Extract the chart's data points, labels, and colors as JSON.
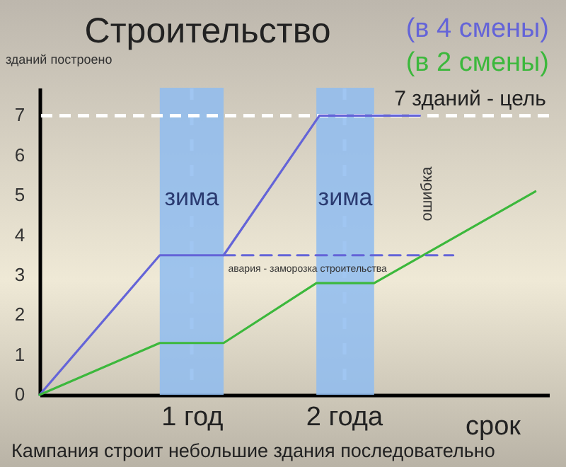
{
  "chart_data": {
    "type": "line",
    "title": "Строительство",
    "xlabel": "срок",
    "ylabel": "зданий построено",
    "x": [
      0,
      0.79,
      1.21,
      1.84,
      2.5
    ],
    "series": [
      {
        "name": "(в 4 смены)",
        "color": "#6464d8",
        "values": [
          0,
          3.5,
          3.5,
          7,
          7
        ]
      },
      {
        "name": "(в 2 смены)",
        "color": "#3cb83c",
        "x": [
          0,
          0.79,
          1.21,
          1.82,
          2.2,
          3.26
        ],
        "values": [
          0,
          1.3,
          1.3,
          2.8,
          2.8,
          5.1
        ]
      },
      {
        "color": "#6464d8",
        "line_style": "dashed",
        "x": [
          1.21,
          2.72
        ],
        "values": [
          3.5,
          3.5
        ]
      }
    ],
    "xlim": [
      0,
      3.35
    ],
    "ylim": [
      0,
      7.7
    ],
    "xticks": [
      {
        "value": 1,
        "label": "1 год"
      },
      {
        "value": 2,
        "label": "2 года"
      }
    ],
    "yticks": [
      0,
      1,
      2,
      3,
      4,
      5,
      6,
      7
    ],
    "grid": "x",
    "legend": "top right",
    "bands": [
      {
        "axis": "x",
        "from": 0.79,
        "to": 1.21,
        "label": "зима",
        "color": "#8fbcf0"
      },
      {
        "axis": "x",
        "from": 1.82,
        "to": 2.2,
        "label": "зима",
        "color": "#8fbcf0"
      }
    ],
    "ref_lines": [
      {
        "axis": "y",
        "value": 7,
        "label": "7 зданий - цель",
        "color": "#ffffff",
        "line_style": "dashed"
      }
    ],
    "annotations": [
      "ошибка",
      {
        "text": "авария - заморозка строительства",
        "x": 1.24,
        "y": 3.3
      },
      "Кампания строит небольшие здания последовательно"
    ]
  }
}
